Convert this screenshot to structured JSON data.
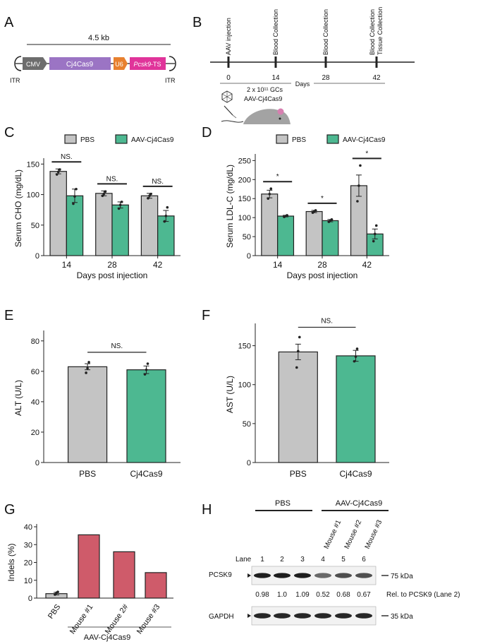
{
  "colors": {
    "pbs": "#c4c4c4",
    "aav": "#4db891",
    "indel": "#cf5b6a",
    "cmv": "#6d6d6d",
    "cas9": "#9b74c4",
    "u6": "#e8802f",
    "ts": "#e0349a",
    "mouse": "#a3a3a3"
  },
  "panelA": {
    "letter": "A",
    "size": "4.5 kb",
    "itr_left": "ITR",
    "itr_right": "ITR",
    "cmv": "CMV",
    "cas9": "Cj4Cas9",
    "u6": "U6",
    "ts_gene": "Pcsk9",
    "ts_suffix": "-TS"
  },
  "panelB": {
    "letter": "B",
    "events": [
      "AAV injection",
      "Blood Collection",
      "Blood Collection",
      "Blood Collection",
      "Tissue Collection"
    ],
    "days": [
      "0",
      "14",
      "28",
      "42"
    ],
    "axis_label": "Days",
    "dose_line1": "2 x 10¹¹ GCs",
    "dose_line2": "AAV-Cj4Cas9"
  },
  "chart_data": [
    {
      "panel": "C",
      "type": "bar",
      "categories": [
        "14",
        "28",
        "42"
      ],
      "series": [
        {
          "name": "PBS",
          "values": [
            138,
            102,
            98
          ],
          "errors": [
            4,
            4,
            4
          ],
          "points": [
            [
              133,
              137,
              141
            ],
            [
              98,
              101,
              105
            ],
            [
              94,
              98,
              101
            ]
          ]
        },
        {
          "name": "AAV-Cj4Cas9",
          "values": [
            98,
            83,
            65
          ],
          "errors": [
            11,
            5,
            9
          ],
          "points": [
            [
              85,
              97,
              109
            ],
            [
              77,
              83,
              88
            ],
            [
              56,
              65,
              79
            ]
          ]
        }
      ],
      "significance": [
        "NS.",
        "NS.",
        "NS."
      ],
      "legend": [
        "PBS",
        "AAV-Cj4Cas9"
      ],
      "xlabel": "Days post injection",
      "ylabel": "Serum CHO (mg/dL)",
      "ylim": [
        0,
        155
      ],
      "yticks": [
        "0",
        "50",
        "100",
        "150"
      ]
    },
    {
      "panel": "D",
      "type": "bar",
      "categories": [
        "14",
        "28",
        "42"
      ],
      "series": [
        {
          "name": "PBS",
          "values": [
            162,
            116,
            184
          ],
          "errors": [
            10,
            3,
            28
          ],
          "points": [
            [
              150,
              162,
              176
            ],
            [
              113,
              116,
              119
            ],
            [
              143,
              184,
              237
            ]
          ]
        },
        {
          "name": "AAV-Cj4Cas9",
          "values": [
            104,
            92,
            57
          ],
          "errors": [
            2,
            3,
            13
          ],
          "points": [
            [
              102,
              104,
              106
            ],
            [
              89,
              92,
              95
            ],
            [
              38,
              57,
              79
            ]
          ]
        }
      ],
      "significance": [
        "*",
        "*",
        "*"
      ],
      "legend": [
        "PBS",
        "AAV-Cj4Cas9"
      ],
      "xlabel": "Days post injection",
      "ylabel": "Serum LDL-C (mg/dL)",
      "ylim": [
        0,
        260
      ],
      "yticks": [
        "0",
        "50",
        "100",
        "150",
        "200",
        "250"
      ]
    },
    {
      "panel": "E",
      "type": "bar",
      "categories": [
        "PBS",
        "Cj4Cas9"
      ],
      "values": [
        63,
        61
      ],
      "errors": [
        2,
        2.5
      ],
      "points": [
        [
          59,
          62,
          66
        ],
        [
          58,
          61,
          65
        ]
      ],
      "significance": "NS.",
      "ylabel": "ALT (U/L)",
      "ylim": [
        0,
        85
      ],
      "yticks": [
        "0",
        "20",
        "40",
        "60",
        "80"
      ]
    },
    {
      "panel": "F",
      "type": "bar",
      "categories": [
        "PBS",
        "Cj4Cas9"
      ],
      "values": [
        142,
        137
      ],
      "errors": [
        10,
        7
      ],
      "points": [
        [
          122,
          143,
          161
        ],
        [
          130,
          136,
          146
        ]
      ],
      "significance": "NS.",
      "ylabel": "AST (U/L)",
      "ylim": [
        0,
        175
      ],
      "yticks": [
        "0",
        "50",
        "100",
        "150"
      ]
    },
    {
      "panel": "G",
      "type": "bar",
      "categories": [
        "PBS",
        "Mouse #1",
        "Mouse 2#",
        "Mouse #3"
      ],
      "values": [
        2.5,
        35.5,
        26,
        14.3
      ],
      "errors": [
        0.7,
        0,
        0,
        0
      ],
      "points": [
        [
          2,
          3,
          3.5
        ],
        [],
        [],
        []
      ],
      "group_label": "AAV-Cj4Cas9",
      "ylabel": "Indels (%)",
      "ylim": [
        0,
        40
      ],
      "yticks": [
        "0",
        "10",
        "20",
        "30",
        "40"
      ]
    }
  ],
  "panelH": {
    "letter": "H",
    "group_pbs": "PBS",
    "group_aav": "AAV-Cj4Cas9",
    "mice": [
      "Mouse #1",
      "Mouse #2",
      "Mouse #3"
    ],
    "lane_label": "Lane",
    "lanes": [
      "1",
      "2",
      "3",
      "4",
      "5",
      "6"
    ],
    "pcsk9_label": "PCSK9",
    "gapdh_label": "GAPDH",
    "marker_75": "75 kDa",
    "marker_35": "35 kDa",
    "relative": [
      "0.98",
      "1.0",
      "1.09",
      "0.52",
      "0.68",
      "0.67"
    ],
    "relative_label": "Rel. to PCSK9 (Lane 2)",
    "intensities": [
      0.98,
      1.0,
      1.09,
      0.52,
      0.68,
      0.67
    ]
  },
  "letters": {
    "C": "C",
    "D": "D",
    "E": "E",
    "F": "F",
    "G": "G"
  }
}
